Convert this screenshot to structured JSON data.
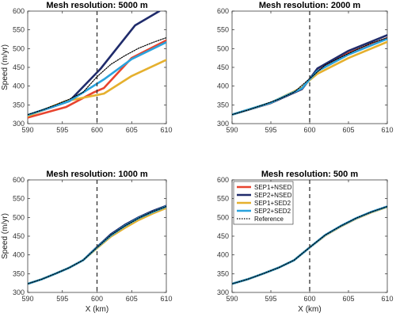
{
  "chart_data": [
    {
      "type": "line",
      "title": "Mesh resolution: 5000 m",
      "xlabel": "",
      "ylabel": "Speed (m/yr)",
      "xlim": [
        590,
        610
      ],
      "ylim": [
        300,
        600
      ],
      "xticks": [
        590,
        595,
        600,
        605,
        610
      ],
      "yticks": [
        300,
        350,
        400,
        450,
        500,
        550,
        600
      ],
      "vline": 600,
      "series": [
        {
          "name": "SEP1+NSED",
          "color": "#e8442e",
          "x": [
            590,
            595.5,
            599.5,
            601,
            605,
            610
          ],
          "y": [
            316,
            344,
            383,
            395,
            475,
            522
          ]
        },
        {
          "name": "SEP2+NSED",
          "color": "#1f2b6b",
          "x": [
            590,
            596,
            600.5,
            605.5,
            609
          ],
          "y": [
            322,
            360,
            446,
            562,
            600
          ]
        },
        {
          "name": "SEP1+SED2",
          "color": "#e5b02e",
          "x": [
            590,
            595.5,
            601,
            605,
            610
          ],
          "y": [
            320,
            360,
            380,
            427,
            470
          ]
        },
        {
          "name": "SEP2+SED2",
          "color": "#2aa3dd",
          "x": [
            590,
            596,
            601,
            605,
            610
          ],
          "y": [
            323,
            360,
            418,
            472,
            517
          ]
        },
        {
          "name": "Reference",
          "color": "#000000",
          "x": [
            590,
            592,
            594,
            596,
            598,
            600,
            602,
            604,
            606,
            608,
            610
          ],
          "y": [
            324,
            336,
            350,
            365,
            384,
            425,
            458,
            481,
            501,
            516,
            529
          ]
        }
      ]
    },
    {
      "type": "line",
      "title": "Mesh resolution: 2000 m",
      "xlabel": "",
      "ylabel": "",
      "xlim": [
        590,
        610
      ],
      "ylim": [
        300,
        600
      ],
      "xticks": [
        590,
        595,
        600,
        605,
        610
      ],
      "yticks": [
        300,
        350,
        400,
        450,
        500,
        550,
        600
      ],
      "vline": 600,
      "series": [
        {
          "name": "SEP1+NSED",
          "color": "#e8442e",
          "x": [
            590,
            595,
            599,
            600,
            601,
            605,
            610
          ],
          "y": [
            324,
            355,
            392,
            418,
            441,
            488,
            528
          ]
        },
        {
          "name": "SEP2+NSED",
          "color": "#1f2b6b",
          "x": [
            590,
            595,
            599,
            600,
            601,
            605,
            610
          ],
          "y": [
            324,
            355,
            392,
            419,
            447,
            494,
            536
          ]
        },
        {
          "name": "SEP1+SED2",
          "color": "#e5b02e",
          "x": [
            590,
            595,
            599,
            600,
            601,
            605,
            610
          ],
          "y": [
            324,
            356,
            396,
            416,
            433,
            475,
            518
          ]
        },
        {
          "name": "SEP2+SED2",
          "color": "#2aa3dd",
          "x": [
            590,
            595,
            599,
            600,
            601,
            605,
            610
          ],
          "y": [
            324,
            356,
            394,
            418,
            440,
            484,
            526
          ]
        },
        {
          "name": "Reference",
          "color": "#000000",
          "x": [
            590,
            592,
            594,
            596,
            598,
            600,
            602,
            604,
            606,
            608,
            610
          ],
          "y": [
            324,
            336,
            350,
            365,
            384,
            420,
            456,
            477,
            497,
            515,
            529
          ]
        }
      ]
    },
    {
      "type": "line",
      "title": "Mesh resolution: 1000 m",
      "xlabel": "X (km)",
      "ylabel": "Speed (m/yr)",
      "xlim": [
        590,
        610
      ],
      "ylim": [
        300,
        600
      ],
      "xticks": [
        590,
        595,
        600,
        605,
        610
      ],
      "yticks": [
        300,
        350,
        400,
        450,
        500,
        550,
        600
      ],
      "vline": 600,
      "series": [
        {
          "name": "SEP1+NSED",
          "color": "#e8442e",
          "x": [
            590,
            592,
            594,
            596,
            598,
            600,
            602,
            604,
            606,
            608,
            610
          ],
          "y": [
            323,
            335,
            350,
            366,
            386,
            420,
            452,
            476,
            497,
            513,
            528
          ]
        },
        {
          "name": "SEP2+NSED",
          "color": "#1f2b6b",
          "x": [
            590,
            592,
            594,
            596,
            598,
            600,
            602,
            604,
            606,
            608,
            610
          ],
          "y": [
            323,
            335,
            350,
            366,
            386,
            421,
            455,
            480,
            500,
            517,
            531
          ]
        },
        {
          "name": "SEP1+SED2",
          "color": "#e5b02e",
          "x": [
            590,
            592,
            594,
            596,
            598,
            600,
            602,
            604,
            606,
            608,
            610
          ],
          "y": [
            323,
            335,
            350,
            366,
            386,
            418,
            449,
            472,
            493,
            510,
            525
          ]
        },
        {
          "name": "SEP2+SED2",
          "color": "#2aa3dd",
          "x": [
            590,
            592,
            594,
            596,
            598,
            600,
            602,
            604,
            606,
            608,
            610
          ],
          "y": [
            323,
            335,
            350,
            366,
            386,
            420,
            452,
            477,
            498,
            514,
            529
          ]
        },
        {
          "name": "Reference",
          "color": "#000000",
          "x": [
            590,
            592,
            594,
            596,
            598,
            600,
            602,
            604,
            606,
            608,
            610
          ],
          "y": [
            323,
            335,
            350,
            366,
            386,
            420,
            453,
            477,
            498,
            515,
            529
          ]
        }
      ]
    },
    {
      "type": "line",
      "title": "Mesh resolution: 500 m",
      "xlabel": "X (km)",
      "ylabel": "",
      "xlim": [
        590,
        610
      ],
      "ylim": [
        300,
        600
      ],
      "xticks": [
        590,
        595,
        600,
        605,
        610
      ],
      "yticks": [
        300,
        350,
        400,
        450,
        500,
        550,
        600
      ],
      "vline": 600,
      "legend": "top-left",
      "series": [
        {
          "name": "SEP1+NSED",
          "color": "#e8442e",
          "x": [
            590,
            592,
            594,
            596,
            598,
            600,
            602,
            604,
            606,
            608,
            610
          ],
          "y": [
            323,
            335,
            350,
            366,
            386,
            420,
            452,
            476,
            497,
            514,
            529
          ]
        },
        {
          "name": "SEP2+NSED",
          "color": "#1f2b6b",
          "x": [
            590,
            592,
            594,
            596,
            598,
            600,
            602,
            604,
            606,
            608,
            610
          ],
          "y": [
            323,
            335,
            350,
            366,
            386,
            420,
            453,
            477,
            498,
            515,
            529
          ]
        },
        {
          "name": "SEP1+SED2",
          "color": "#e5b02e",
          "x": [
            590,
            592,
            594,
            596,
            598,
            600,
            602,
            604,
            606,
            608,
            610
          ],
          "y": [
            323,
            335,
            350,
            366,
            386,
            420,
            452,
            476,
            497,
            514,
            528
          ]
        },
        {
          "name": "SEP2+SED2",
          "color": "#2aa3dd",
          "x": [
            590,
            592,
            594,
            596,
            598,
            600,
            602,
            604,
            606,
            608,
            610
          ],
          "y": [
            323,
            335,
            350,
            366,
            386,
            420,
            453,
            477,
            498,
            515,
            529
          ]
        },
        {
          "name": "Reference",
          "color": "#000000",
          "x": [
            590,
            592,
            594,
            596,
            598,
            600,
            602,
            604,
            606,
            608,
            610
          ],
          "y": [
            323,
            335,
            350,
            366,
            386,
            420,
            453,
            477,
            498,
            515,
            529
          ]
        }
      ]
    }
  ]
}
